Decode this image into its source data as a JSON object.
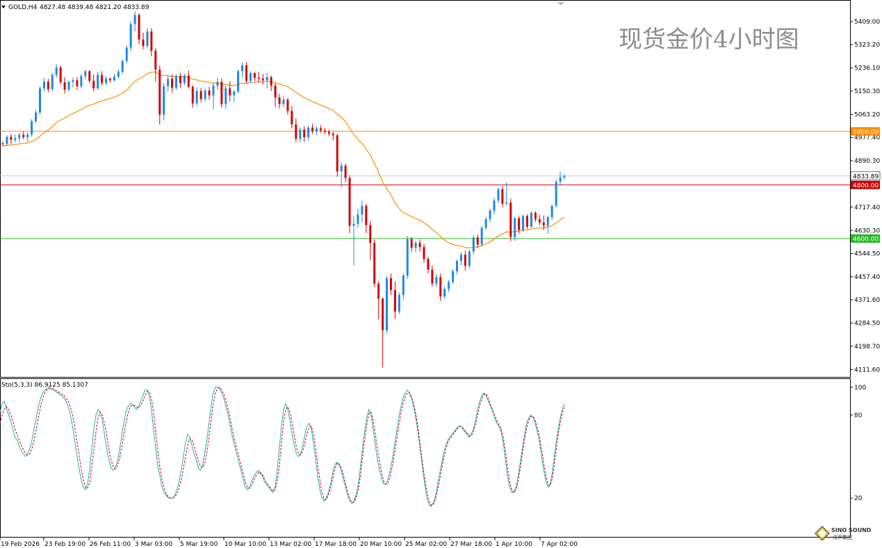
{
  "chart_data": [
    {
      "type": "candlestick",
      "header": {
        "symbol": "GOLD,H4",
        "ohlc": "4827.48 4839.48 4821.20 4833.89"
      },
      "watermark": "现货金价4小时图",
      "y_ticks": [
        "5409.00",
        "5323.20",
        "5236.10",
        "5150.30",
        "5063.20",
        "4977.40",
        "4890.30",
        "4717.40",
        "4630.30",
        "4544.50",
        "4457.40",
        "4371.60",
        "4284.50",
        "4198.70",
        "4111.60"
      ],
      "ylim": [
        4084,
        5487
      ],
      "x_ticks": [
        "19 Feb 2026",
        "23 Feb 19:00",
        "26 Feb 11:00",
        "3 Mar 03:00",
        "5 Mar 19:00",
        "10 Mar 10:00",
        "13 Mar 02:00",
        "17 Mar 18:00",
        "20 Mar 10:00",
        "25 Mar 02:00",
        "27 Mar 18:00",
        "1 Apr 10:00",
        "7 Apr 02:00"
      ],
      "levels": [
        {
          "label": "5000.00",
          "value": 5000,
          "color": "#ff8c00"
        },
        {
          "label": "4800.00",
          "value": 4800,
          "color": "#cc0000"
        },
        {
          "label": "4600.00",
          "value": 4600,
          "color": "#22bb22"
        }
      ],
      "current_price": {
        "label": "4833.89",
        "value": 4833.89
      },
      "candles": [
        [
          4955,
          4962,
          4944,
          4953
        ],
        [
          4953,
          4985,
          4945,
          4979
        ],
        [
          4979,
          4990,
          4952,
          4968
        ],
        [
          4968,
          4988,
          4958,
          4974
        ],
        [
          4974,
          4995,
          4960,
          4987
        ],
        [
          4987,
          5000,
          4970,
          4978
        ],
        [
          4978,
          4996,
          4962,
          4988
        ],
        [
          4988,
          5045,
          4980,
          5038
        ],
        [
          5038,
          5080,
          5030,
          5070
        ],
        [
          5070,
          5168,
          5062,
          5160
        ],
        [
          5160,
          5200,
          5148,
          5185
        ],
        [
          5185,
          5196,
          5145,
          5157
        ],
        [
          5157,
          5218,
          5150,
          5210
        ],
        [
          5210,
          5250,
          5200,
          5238
        ],
        [
          5238,
          5245,
          5175,
          5183
        ],
        [
          5183,
          5202,
          5140,
          5155
        ],
        [
          5155,
          5190,
          5148,
          5184
        ],
        [
          5184,
          5200,
          5164,
          5190
        ],
        [
          5190,
          5202,
          5155,
          5168
        ],
        [
          5168,
          5215,
          5160,
          5206
        ],
        [
          5206,
          5230,
          5194,
          5224
        ],
        [
          5224,
          5228,
          5180,
          5188
        ],
        [
          5188,
          5212,
          5148,
          5160
        ],
        [
          5160,
          5222,
          5155,
          5210
        ],
        [
          5210,
          5224,
          5170,
          5180
        ],
        [
          5180,
          5205,
          5172,
          5196
        ],
        [
          5196,
          5201,
          5182,
          5190
        ],
        [
          5190,
          5214,
          5185,
          5204
        ],
        [
          5204,
          5230,
          5196,
          5222
        ],
        [
          5222,
          5268,
          5214,
          5262
        ],
        [
          5262,
          5320,
          5254,
          5312
        ],
        [
          5312,
          5410,
          5300,
          5400
        ],
        [
          5400,
          5448,
          5372,
          5434
        ],
        [
          5434,
          5440,
          5325,
          5342
        ],
        [
          5342,
          5368,
          5305,
          5318
        ],
        [
          5318,
          5385,
          5310,
          5372
        ],
        [
          5372,
          5385,
          5280,
          5300
        ],
        [
          5300,
          5310,
          5185,
          5230
        ],
        [
          5230,
          5245,
          5025,
          5062
        ],
        [
          5062,
          5180,
          5040,
          5168
        ],
        [
          5168,
          5210,
          5148,
          5196
        ],
        [
          5196,
          5212,
          5144,
          5162
        ],
        [
          5162,
          5212,
          5155,
          5206
        ],
        [
          5206,
          5218,
          5162,
          5180
        ],
        [
          5180,
          5215,
          5172,
          5208
        ],
        [
          5208,
          5226,
          5160,
          5166
        ],
        [
          5166,
          5172,
          5088,
          5104
        ],
        [
          5104,
          5164,
          5092,
          5150
        ],
        [
          5150,
          5162,
          5108,
          5120
        ],
        [
          5120,
          5160,
          5112,
          5152
        ],
        [
          5152,
          5166,
          5118,
          5134
        ],
        [
          5134,
          5180,
          5082,
          5170
        ],
        [
          5170,
          5200,
          5155,
          5184
        ],
        [
          5184,
          5196,
          5088,
          5102
        ],
        [
          5102,
          5172,
          5084,
          5160
        ],
        [
          5160,
          5186,
          5110,
          5134
        ],
        [
          5134,
          5154,
          5108,
          5148
        ],
        [
          5148,
          5230,
          5142,
          5224
        ],
        [
          5224,
          5256,
          5200,
          5246
        ],
        [
          5246,
          5258,
          5178,
          5188
        ],
        [
          5188,
          5225,
          5180,
          5217
        ],
        [
          5217,
          5220,
          5188,
          5200
        ],
        [
          5200,
          5222,
          5182,
          5196
        ],
        [
          5196,
          5214,
          5175,
          5190
        ],
        [
          5190,
          5218,
          5160,
          5202
        ],
        [
          5202,
          5208,
          5150,
          5170
        ],
        [
          5170,
          5180,
          5090,
          5126
        ],
        [
          5126,
          5140,
          5085,
          5102
        ],
        [
          5102,
          5130,
          5090,
          5118
        ],
        [
          5118,
          5124,
          5062,
          5076
        ],
        [
          5076,
          5094,
          5010,
          5026
        ],
        [
          5026,
          5048,
          4960,
          4972
        ],
        [
          4972,
          5015,
          4960,
          5006
        ],
        [
          5006,
          5018,
          4960,
          4978
        ],
        [
          4978,
          5022,
          4966,
          5014
        ],
        [
          5014,
          5028,
          4990,
          5000
        ],
        [
          5000,
          5018,
          4986,
          5011
        ],
        [
          5011,
          5022,
          4995,
          5003
        ],
        [
          5003,
          5012,
          4988,
          4998
        ],
        [
          4998,
          5006,
          4982,
          4991
        ],
        [
          4991,
          4998,
          4966,
          4985
        ],
        [
          4985,
          4990,
          4830,
          4850
        ],
        [
          4850,
          4884,
          4790,
          4872
        ],
        [
          4872,
          4880,
          4810,
          4826
        ],
        [
          4826,
          4836,
          4620,
          4648
        ],
        [
          4648,
          4684,
          4500,
          4655
        ],
        [
          4655,
          4712,
          4640,
          4690
        ],
        [
          4690,
          4742,
          4660,
          4722
        ],
        [
          4722,
          4730,
          4620,
          4650
        ],
        [
          4650,
          4665,
          4520,
          4584
        ],
        [
          4584,
          4596,
          4420,
          4432
        ],
        [
          4432,
          4440,
          4300,
          4376
        ],
        [
          4376,
          4380,
          4120,
          4258
        ],
        [
          4258,
          4460,
          4246,
          4452
        ],
        [
          4452,
          4470,
          4390,
          4408
        ],
        [
          4408,
          4440,
          4300,
          4328
        ],
        [
          4328,
          4400,
          4318,
          4390
        ],
        [
          4390,
          4470,
          4372,
          4462
        ],
        [
          4462,
          4610,
          4450,
          4598
        ],
        [
          4598,
          4606,
          4550,
          4566
        ],
        [
          4566,
          4592,
          4548,
          4584
        ],
        [
          4584,
          4596,
          4552,
          4568
        ],
        [
          4568,
          4580,
          4510,
          4524
        ],
        [
          4524,
          4532,
          4470,
          4484
        ],
        [
          4484,
          4500,
          4420,
          4432
        ],
        [
          4432,
          4468,
          4420,
          4456
        ],
        [
          4456,
          4470,
          4368,
          4384
        ],
        [
          4384,
          4422,
          4376,
          4412
        ],
        [
          4412,
          4446,
          4400,
          4438
        ],
        [
          4438,
          4486,
          4430,
          4478
        ],
        [
          4478,
          4522,
          4466,
          4516
        ],
        [
          4516,
          4548,
          4500,
          4540
        ],
        [
          4540,
          4555,
          4480,
          4498
        ],
        [
          4498,
          4560,
          4490,
          4552
        ],
        [
          4552,
          4612,
          4540,
          4604
        ],
        [
          4604,
          4616,
          4564,
          4578
        ],
        [
          4578,
          4646,
          4570,
          4640
        ],
        [
          4640,
          4680,
          4632,
          4672
        ],
        [
          4672,
          4712,
          4660,
          4704
        ],
        [
          4704,
          4752,
          4690,
          4742
        ],
        [
          4742,
          4790,
          4732,
          4784
        ],
        [
          4784,
          4796,
          4718,
          4730
        ],
        [
          4730,
          4810,
          4724,
          4734
        ],
        [
          4734,
          4748,
          4590,
          4606
        ],
        [
          4606,
          4682,
          4592,
          4676
        ],
        [
          4676,
          4684,
          4620,
          4632
        ],
        [
          4632,
          4690,
          4624,
          4684
        ],
        [
          4684,
          4690,
          4636,
          4644
        ],
        [
          4644,
          4700,
          4640,
          4696
        ],
        [
          4696,
          4702,
          4662,
          4672
        ],
        [
          4672,
          4688,
          4650,
          4660
        ],
        [
          4660,
          4686,
          4632,
          4648
        ],
        [
          4648,
          4686,
          4618,
          4680
        ],
        [
          4680,
          4726,
          4670,
          4722
        ],
        [
          4722,
          4820,
          4716,
          4812
        ],
        [
          4812,
          4850,
          4800,
          4828
        ],
        [
          4827.48,
          4839.48,
          4821.2,
          4833.89
        ]
      ],
      "ma_start": 4945,
      "ma_end": 4662
    },
    {
      "type": "line",
      "title": "Sto(5,3,3) 86.9125 85.1307",
      "y_ticks": [
        "100",
        "80",
        "20"
      ],
      "ylim": [
        -8,
        106
      ],
      "main_color": "#20b2aa",
      "signal_color": "#cc0000",
      "main": [
        82,
        88,
        90,
        85,
        80,
        76,
        70,
        64,
        62,
        58,
        54,
        52,
        50,
        52,
        56,
        62,
        70,
        78,
        86,
        92,
        96,
        98,
        99,
        100,
        99,
        98,
        97,
        96,
        95,
        94,
        92,
        90,
        86,
        80,
        72,
        62,
        52,
        42,
        34,
        28,
        26,
        30,
        40,
        55,
        70,
        80,
        84,
        82,
        76,
        66,
        56,
        48,
        42,
        40,
        42,
        46,
        54,
        64,
        74,
        82,
        86,
        88,
        88,
        86,
        84,
        86,
        90,
        94,
        98,
        98,
        94,
        84,
        70,
        56,
        44,
        36,
        28,
        24,
        22,
        20,
        20,
        20,
        22,
        26,
        32,
        40,
        50,
        60,
        66,
        64,
        58,
        52,
        48,
        42,
        40,
        44,
        52,
        62,
        74,
        86,
        96,
        100,
        100,
        99,
        96,
        92,
        86,
        80,
        72,
        64,
        58,
        52,
        46,
        40,
        34,
        28,
        26,
        28,
        32,
        36,
        38,
        40,
        38,
        36,
        32,
        30,
        28,
        26,
        24,
        28,
        40,
        56,
        72,
        84,
        88,
        84,
        76,
        66,
        58,
        52,
        50,
        52,
        58,
        66,
        72,
        74,
        70,
        60,
        48,
        36,
        26,
        20,
        18,
        20,
        24,
        30,
        38,
        44,
        46,
        44,
        40,
        34,
        28,
        22,
        18,
        16,
        18,
        22,
        30,
        42,
        56,
        68,
        78,
        84,
        80,
        70,
        58,
        48,
        40,
        34,
        30,
        30,
        34,
        40,
        48,
        58,
        68,
        78,
        86,
        92,
        96,
        98,
        96,
        92,
        86,
        78,
        68,
        56,
        44,
        32,
        22,
        16,
        14,
        16,
        20,
        28,
        36,
        44,
        52,
        58,
        62,
        64,
        66,
        68,
        70,
        72,
        72,
        70,
        68,
        66,
        64,
        66,
        70,
        76,
        84,
        90,
        94,
        96,
        94,
        90,
        86,
        82,
        78,
        74,
        72,
        68,
        60,
        48,
        36,
        28,
        24,
        24,
        28,
        36,
        46,
        56,
        66,
        74,
        78,
        80,
        78,
        74,
        68,
        60,
        50,
        40,
        32,
        28,
        30,
        38,
        50,
        62,
        72,
        80,
        86,
        88
      ],
      "signal": [
        74,
        80,
        84,
        86,
        84,
        80,
        76,
        70,
        66,
        62,
        58,
        55,
        52,
        51,
        52,
        56,
        62,
        70,
        78,
        86,
        92,
        96,
        98,
        99,
        99,
        99,
        98,
        97,
        96,
        95,
        94,
        92,
        90,
        86,
        80,
        72,
        62,
        52,
        42,
        34,
        28,
        27,
        31,
        42,
        55,
        68,
        78,
        82,
        80,
        74,
        66,
        56,
        48,
        43,
        41,
        43,
        48,
        56,
        65,
        74,
        81,
        86,
        87,
        87,
        86,
        85,
        87,
        90,
        94,
        97,
        97,
        92,
        82,
        68,
        54,
        42,
        33,
        27,
        23,
        21,
        20,
        20,
        21,
        23,
        27,
        33,
        41,
        50,
        58,
        63,
        62,
        58,
        52,
        47,
        43,
        42,
        45,
        53,
        64,
        76,
        88,
        96,
        99,
        100,
        98,
        95,
        90,
        84,
        77,
        69,
        62,
        56,
        50,
        44,
        38,
        32,
        28,
        27,
        29,
        33,
        36,
        38,
        39,
        37,
        34,
        31,
        29,
        27,
        25,
        26,
        32,
        44,
        60,
        75,
        84,
        86,
        82,
        74,
        65,
        57,
        52,
        51,
        54,
        60,
        67,
        71,
        72,
        66,
        56,
        44,
        33,
        24,
        19,
        19,
        22,
        27,
        34,
        41,
        45,
        45,
        42,
        37,
        31,
        25,
        20,
        17,
        17,
        20,
        26,
        36,
        49,
        62,
        73,
        81,
        82,
        76,
        66,
        55,
        46,
        38,
        32,
        30,
        31,
        36,
        43,
        52,
        62,
        72,
        81,
        88,
        93,
        96,
        96,
        93,
        88,
        81,
        71,
        59,
        47,
        36,
        26,
        19,
        15,
        15,
        18,
        24,
        32,
        40,
        48,
        55,
        60,
        63,
        65,
        67,
        69,
        71,
        72,
        71,
        69,
        67,
        65,
        65,
        68,
        73,
        80,
        87,
        92,
        95,
        95,
        92,
        88,
        84,
        80,
        76,
        73,
        70,
        64,
        54,
        42,
        32,
        26,
        24,
        26,
        32,
        42,
        52,
        62,
        71,
        76,
        79,
        79,
        76,
        71,
        64,
        55,
        45,
        36,
        30,
        29,
        34,
        45,
        57,
        68,
        77,
        83,
        86
      ]
    }
  ],
  "logo": {
    "name": "SINO SOUND",
    "sub": "汉声集团"
  }
}
